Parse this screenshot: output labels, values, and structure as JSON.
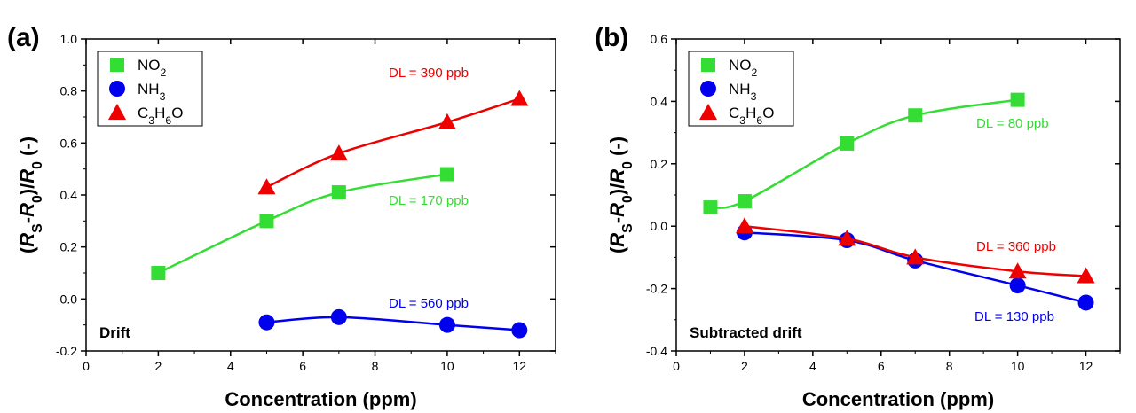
{
  "chart_data": [
    {
      "type": "line",
      "panel_label": "(a)",
      "corner_label": "Drift",
      "xlabel": "Concentration (ppm)",
      "ylabel": "(R_S-R_0)/R_0 (-)",
      "xlim": [
        0,
        13
      ],
      "ylim": [
        -0.2,
        1.0
      ],
      "xticks": [
        0,
        2,
        4,
        6,
        8,
        10,
        12
      ],
      "xtick_labels": [
        "0",
        "2",
        "4",
        "6",
        "8",
        "10",
        "12"
      ],
      "yticks": [
        -0.2,
        0.0,
        0.2,
        0.4,
        0.6,
        0.8,
        1.0
      ],
      "ytick_labels": [
        "-0.2",
        "0.0",
        "0.2",
        "0.4",
        "0.6",
        "0.8",
        "1.0"
      ],
      "legend_position": "top-left",
      "series": [
        {
          "name": "NO2",
          "marker": "square",
          "color": "#33dd33",
          "x": [
            2,
            5,
            7,
            10
          ],
          "y": [
            0.1,
            0.3,
            0.41,
            0.48
          ],
          "annotation": "DL = 170 ppb"
        },
        {
          "name": "NH3",
          "marker": "circle",
          "color": "#0000ee",
          "x": [
            5,
            7,
            10,
            12
          ],
          "y": [
            -0.09,
            -0.07,
            -0.1,
            -0.12
          ],
          "annotation": "DL = 560 ppb"
        },
        {
          "name": "C3H6O",
          "marker": "triangle",
          "color": "#ee0000",
          "x": [
            5,
            7,
            10,
            12
          ],
          "y": [
            0.43,
            0.56,
            0.68,
            0.77
          ],
          "annotation": "DL = 390 ppb"
        }
      ]
    },
    {
      "type": "line",
      "panel_label": "(b)",
      "corner_label": "Subtracted drift",
      "xlabel": "Concentration (ppm)",
      "ylabel": "(R_S-R_0)/R_0 (-)",
      "xlim": [
        0,
        13
      ],
      "ylim": [
        -0.4,
        0.6
      ],
      "xticks": [
        0,
        2,
        4,
        6,
        8,
        10,
        12
      ],
      "xtick_labels": [
        "0",
        "2",
        "4",
        "6",
        "8",
        "10",
        "12"
      ],
      "yticks": [
        -0.4,
        -0.2,
        0.0,
        0.2,
        0.4,
        0.6
      ],
      "ytick_labels": [
        "-0.4",
        "-0.2",
        "0.0",
        "0.2",
        "0.4",
        "0.6"
      ],
      "legend_position": "top-left",
      "series": [
        {
          "name": "NO2",
          "marker": "square",
          "color": "#33dd33",
          "x": [
            1,
            2,
            5,
            7,
            10
          ],
          "y": [
            0.06,
            0.08,
            0.265,
            0.355,
            0.405
          ],
          "annotation": "DL = 80 ppb"
        },
        {
          "name": "NH3",
          "marker": "circle",
          "color": "#0000ee",
          "x": [
            2,
            5,
            7,
            10,
            12
          ],
          "y": [
            -0.02,
            -0.045,
            -0.11,
            -0.19,
            -0.245
          ],
          "annotation": "DL = 130 ppb"
        },
        {
          "name": "C3H6O",
          "marker": "triangle",
          "color": "#ee0000",
          "x": [
            2,
            5,
            7,
            10,
            12
          ],
          "y": [
            0.0,
            -0.04,
            -0.1,
            -0.145,
            -0.16
          ],
          "annotation": "DL = 360 ppb"
        }
      ]
    }
  ]
}
